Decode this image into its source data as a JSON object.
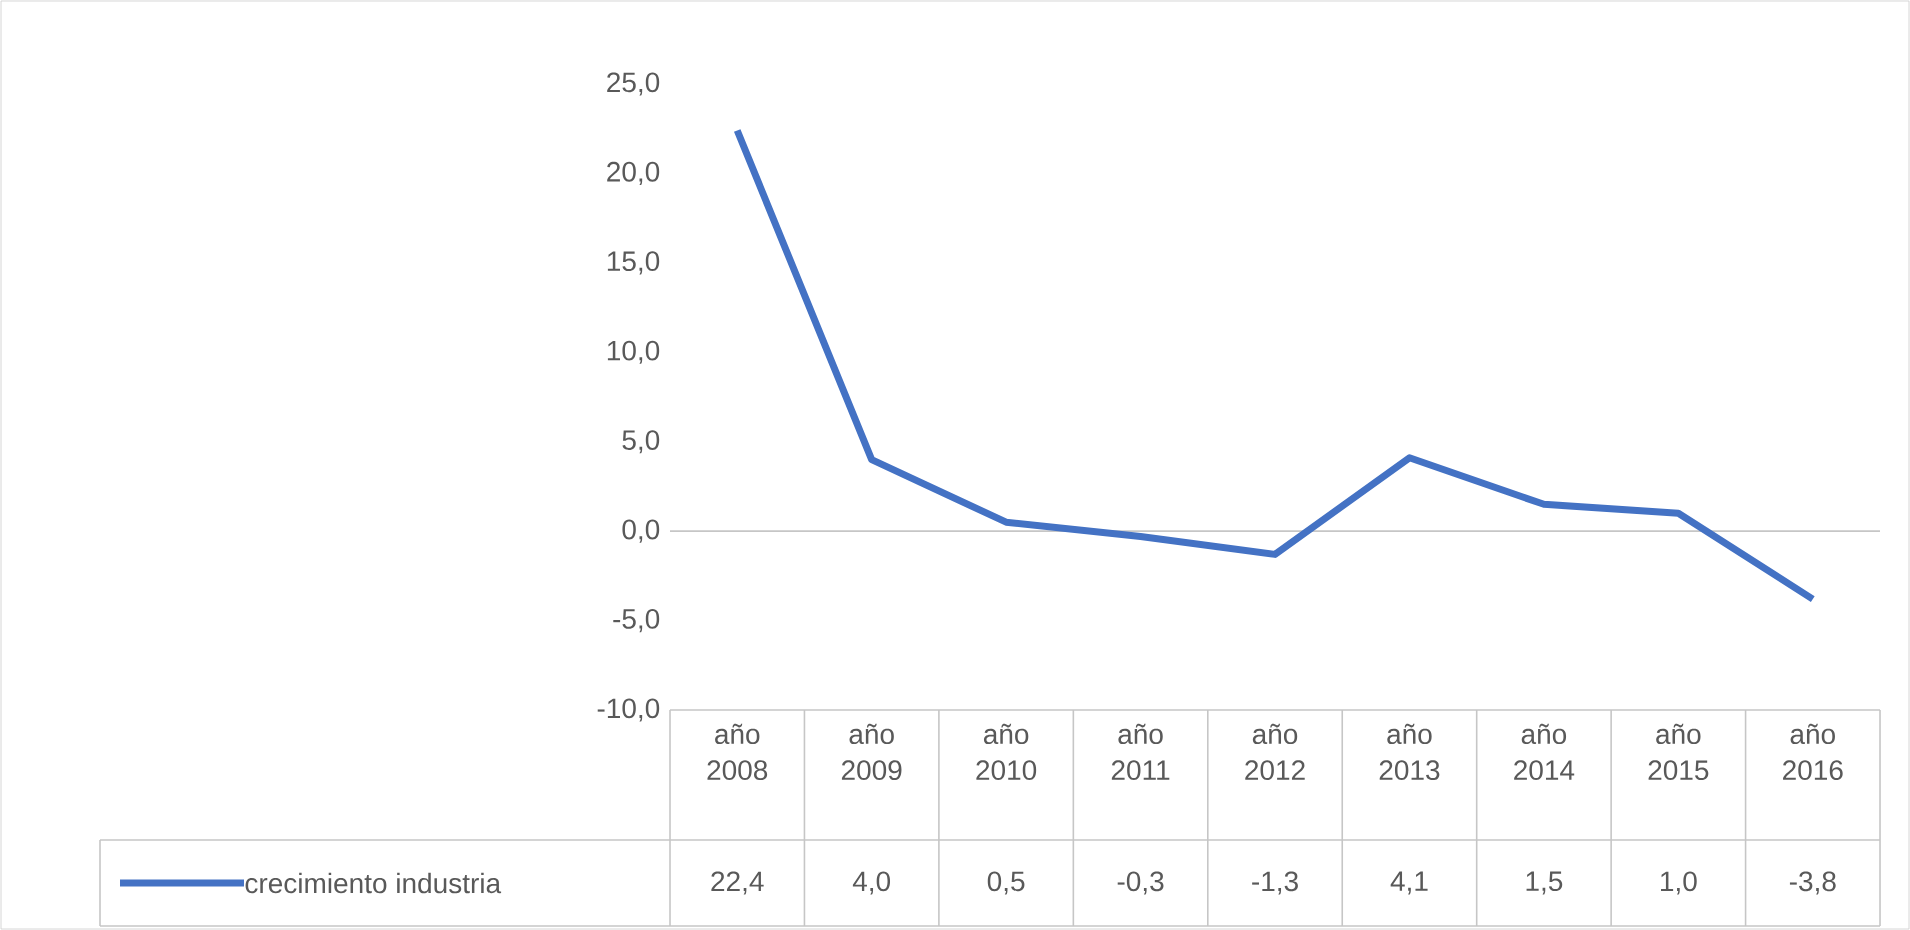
{
  "chart_data": {
    "type": "line",
    "categories": [
      "año 2008",
      "año 2009",
      "año 2010",
      "año 2011",
      "año 2012",
      "año 2013",
      "año 2014",
      "año 2015",
      "año 2016"
    ],
    "series": [
      {
        "name": "crecimiento industria",
        "color": "#4472c4",
        "values": [
          22.4,
          4.0,
          0.5,
          -0.3,
          -1.3,
          4.1,
          1.5,
          1.0,
          -3.8
        ],
        "value_labels": [
          "22,4",
          "4,0",
          "0,5",
          "-0,3",
          "-1,3",
          "4,1",
          "1,5",
          "1,0",
          "-3,8"
        ]
      }
    ],
    "ylim": [
      -10,
      25
    ],
    "yticks": [
      {
        "value": -10,
        "label": "-10,0"
      },
      {
        "value": -5,
        "label": "-5,0"
      },
      {
        "value": 0,
        "label": "0,0"
      },
      {
        "value": 5,
        "label": "5,0"
      },
      {
        "value": 10,
        "label": "10,0"
      },
      {
        "value": 15,
        "label": "15,0"
      },
      {
        "value": 20,
        "label": "20,0"
      },
      {
        "value": 25,
        "label": "25,0"
      }
    ],
    "legend": "bottom"
  }
}
